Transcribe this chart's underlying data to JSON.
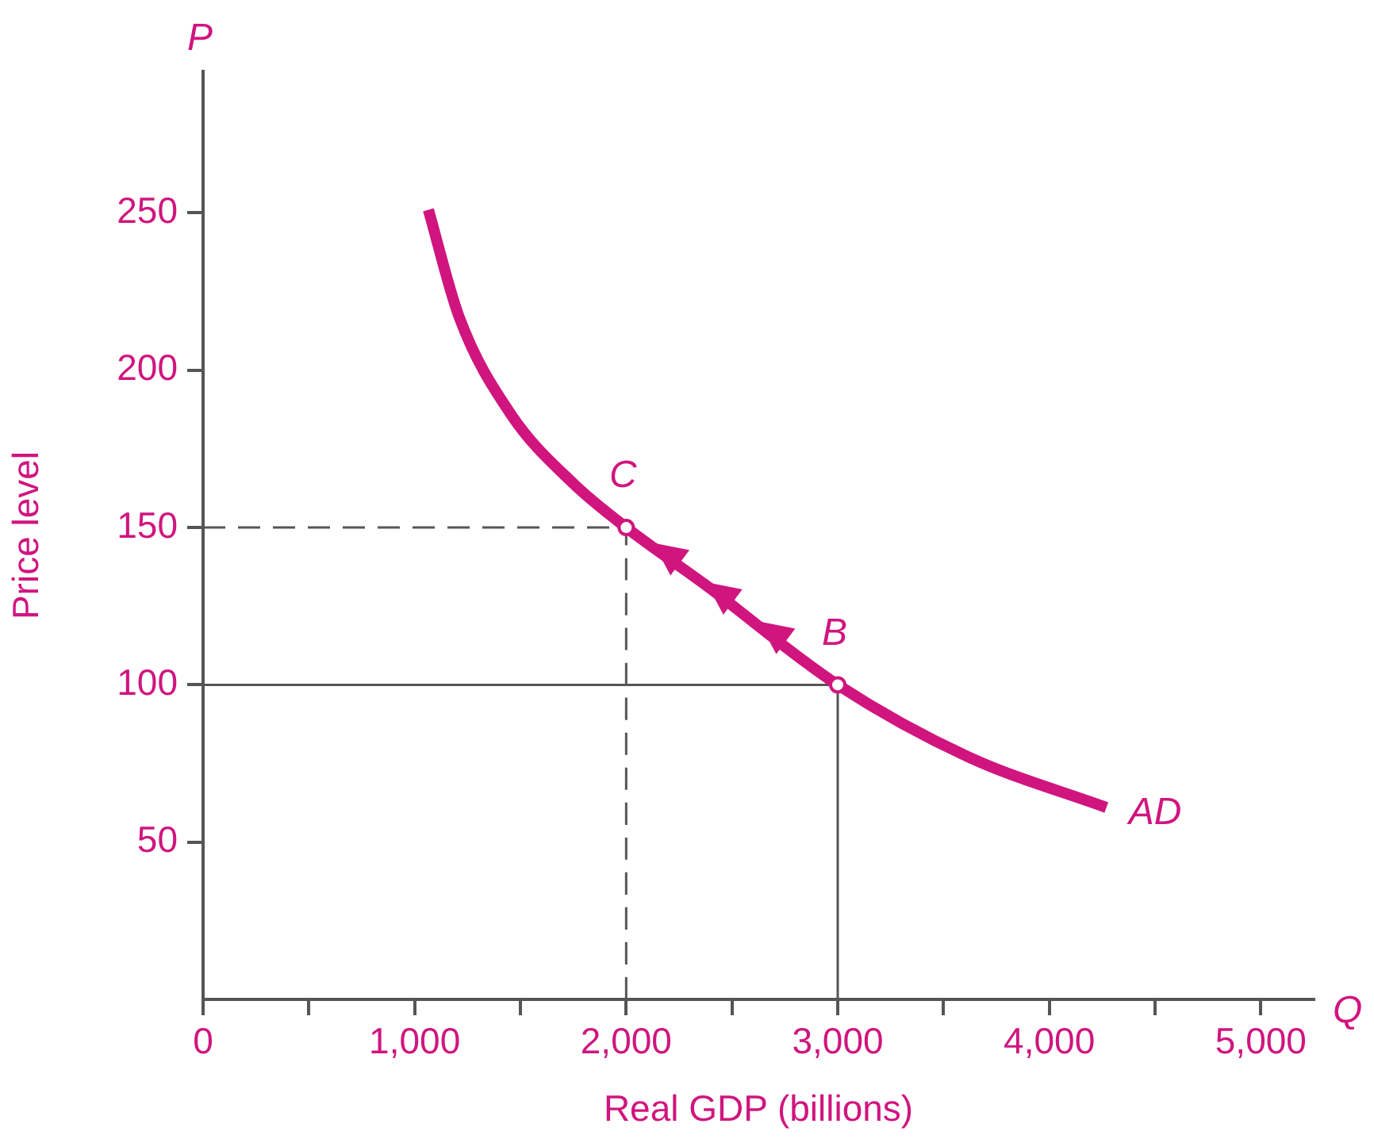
{
  "chart_data": {
    "type": "line",
    "xlabel": "Real GDP (billions)",
    "ylabel": "Price level",
    "xlim": [
      0,
      5250
    ],
    "ylim": [
      0,
      295
    ],
    "xticks": [
      0,
      {
        "value": 500,
        "label": null
      },
      {
        "value": 1000,
        "label": "1,000"
      },
      {
        "value": 1500,
        "label": null
      },
      {
        "value": 2000,
        "label": "2,000"
      },
      {
        "value": 2500,
        "label": null
      },
      {
        "value": 3000,
        "label": "3,000"
      },
      {
        "value": 3500,
        "label": null
      },
      {
        "value": 4000,
        "label": "4,000"
      },
      {
        "value": 4500,
        "label": null
      },
      {
        "value": 5000,
        "label": "5,000"
      }
    ],
    "yticks": [
      50,
      100,
      150,
      200,
      250
    ],
    "series": [
      {
        "name": "AD",
        "type": "line",
        "color": "#d0157f",
        "marker": "none",
        "line_style": "solid",
        "x": [
          1065,
          1210,
          1455,
          1750,
          2000,
          2370,
          3000,
          3620,
          4270
        ],
        "values": [
          251,
          217,
          186,
          164,
          150,
          132,
          100,
          77,
          61
        ]
      },
      {
        "type": "line",
        "color": "#555555",
        "marker": "none",
        "line_style": "dashed",
        "x": [
          0,
          2000,
          2000
        ],
        "values": [
          150,
          150,
          0
        ]
      },
      {
        "type": "line",
        "color": "#555555",
        "marker": "none",
        "line_style": "solid",
        "x": [
          0,
          3000,
          3000
        ],
        "values": [
          100,
          100,
          0
        ]
      },
      {
        "type": "scatter",
        "color": "#d0157f",
        "marker": "circle",
        "x": [
          2000,
          3000
        ],
        "values": [
          150,
          100
        ]
      }
    ],
    "annotations": [
      "P",
      "Q",
      {
        "text": "C",
        "x": 2000,
        "y": 150
      },
      {
        "text": "B",
        "x": 3000,
        "y": 100
      }
    ]
  }
}
